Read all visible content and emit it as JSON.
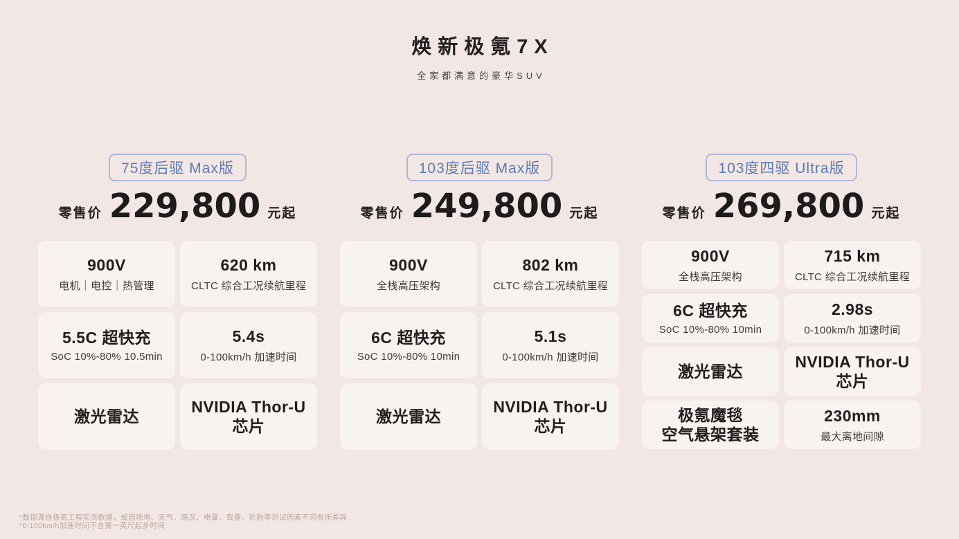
{
  "header": {
    "title": "焕新极氪7X",
    "subtitle": "全家都满意的豪华SUV"
  },
  "labels": {
    "price_prefix": "零售价",
    "price_suffix": "元起"
  },
  "trims": [
    {
      "badge": "75度后驱 Max版",
      "price": "229,800",
      "cells": [
        {
          "value": "900V",
          "label": "电机｜电控｜热管理"
        },
        {
          "value": "620 km",
          "label": "CLTC 综合工况续航里程"
        },
        {
          "value": "5.5C 超快充",
          "label": "SoC 10%-80% 10.5min"
        },
        {
          "value": "5.4s",
          "label": "0-100km/h 加速时间"
        },
        {
          "value": "激光雷达",
          "label": ""
        },
        {
          "value": "NVIDIA Thor-U 芯片",
          "label": ""
        }
      ]
    },
    {
      "badge": "103度后驱 Max版",
      "price": "249,800",
      "cells": [
        {
          "value": "900V",
          "label": "全栈高压架构"
        },
        {
          "value": "802 km",
          "label": "CLTC 综合工况续航里程"
        },
        {
          "value": "6C 超快充",
          "label": "SoC 10%-80% 10min"
        },
        {
          "value": "5.1s",
          "label": "0-100km/h 加速时间"
        },
        {
          "value": "激光雷达",
          "label": ""
        },
        {
          "value": "NVIDIA Thor-U 芯片",
          "label": ""
        }
      ]
    },
    {
      "badge": "103度四驱 Ultra版",
      "price": "269,800",
      "cells": [
        {
          "value": "900V",
          "label": "全栈高压架构"
        },
        {
          "value": "715 km",
          "label": "CLTC 综合工况续航里程"
        },
        {
          "value": "6C 超快充",
          "label": "SoC 10%-80% 10min"
        },
        {
          "value": "2.98s",
          "label": "0-100km/h 加速时间"
        },
        {
          "value": "激光雷达",
          "label": ""
        },
        {
          "value": "NVIDIA Thor-U 芯片",
          "label": ""
        },
        {
          "value": "极氪魔毯\n空气悬架套装",
          "label": ""
        },
        {
          "value": "230mm",
          "label": "最大离地间隙"
        }
      ]
    }
  ],
  "footnotes": {
    "line1": "*数据源自极氪工程实测数据，或因场地、天气、路况、电量、载重、轮胎等测试因素不同有所差异",
    "line2": "*0-100km/h加速时间不含第一英尺起步时间"
  },
  "colors": {
    "background": "#f2e7e4",
    "card": "#f8f2f0",
    "accent_blue": "#5b79b4",
    "text_dark": "#1d1b1b",
    "footnote": "#bfa7a3"
  }
}
